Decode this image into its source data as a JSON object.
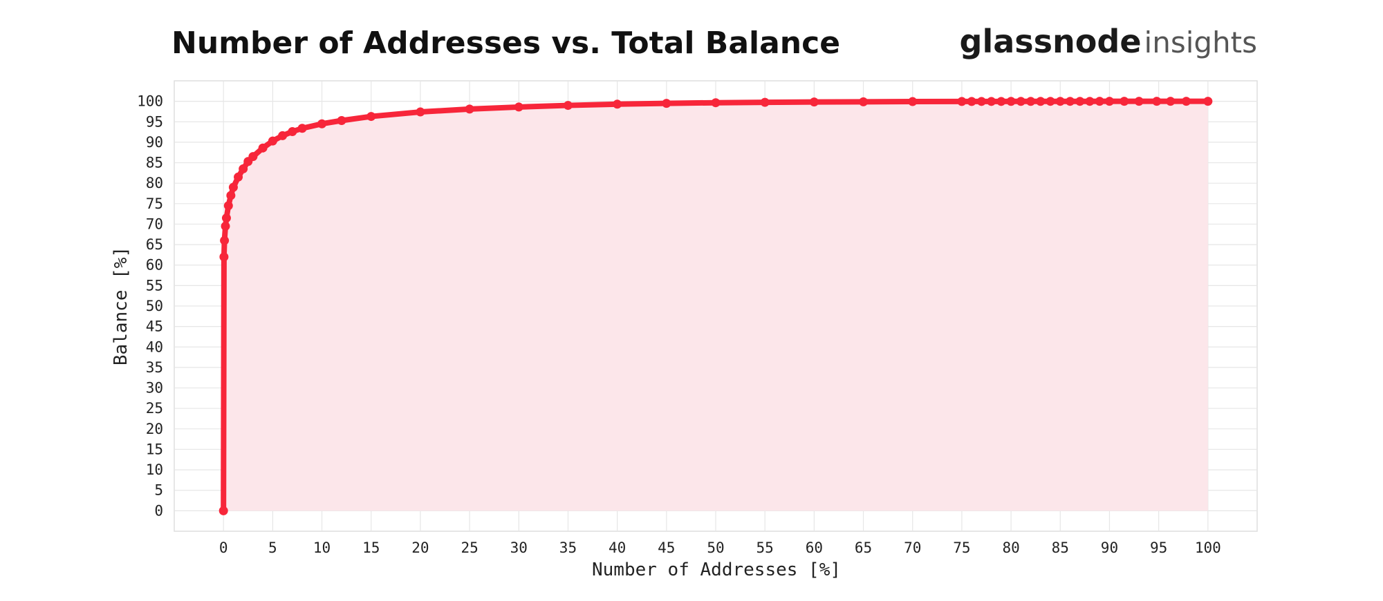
{
  "title": "Number of Addresses vs. Total Balance",
  "brand": {
    "name": "glassnode",
    "product": "insights"
  },
  "colors": {
    "line": "#f7263a",
    "fill": "#fce6ea",
    "grid": "#e6e6e6",
    "frame": "#dedede"
  },
  "chart_data": {
    "type": "area",
    "title": "Number of Addresses vs. Total Balance",
    "xlabel": "Number of Addresses [%]",
    "ylabel": "Balance [%]",
    "xlim": [
      -5,
      105
    ],
    "ylim": [
      -5,
      105
    ],
    "xticks": [
      0,
      5,
      10,
      15,
      20,
      25,
      30,
      35,
      40,
      45,
      50,
      55,
      60,
      65,
      70,
      75,
      80,
      85,
      90,
      95,
      100
    ],
    "yticks": [
      0,
      5,
      10,
      15,
      20,
      25,
      30,
      35,
      40,
      45,
      50,
      55,
      60,
      65,
      70,
      75,
      80,
      85,
      90,
      95,
      100
    ],
    "grid": true,
    "series": [
      {
        "x": [
          0,
          0.05,
          0.1,
          0.2,
          0.3,
          0.5,
          0.75,
          1,
          1.5,
          2,
          2.5,
          3,
          4,
          5,
          6,
          7,
          8,
          10,
          12,
          15,
          20,
          25,
          30,
          35,
          40,
          45,
          50,
          55,
          60,
          65,
          70,
          75,
          76,
          77,
          78,
          79,
          80,
          81,
          82,
          83,
          84,
          85,
          86,
          87,
          88,
          89,
          90,
          91.5,
          93,
          94.8,
          96.2,
          97.8,
          100
        ],
        "y": [
          0,
          62,
          66,
          69.5,
          71.5,
          74.5,
          77,
          79,
          81.5,
          83.5,
          85.3,
          86.5,
          88.6,
          90.3,
          91.6,
          92.6,
          93.4,
          94.5,
          95.3,
          96.3,
          97.4,
          98.1,
          98.6,
          99,
          99.3,
          99.5,
          99.65,
          99.75,
          99.83,
          99.88,
          99.93,
          99.96,
          99.96,
          99.97,
          99.97,
          99.97,
          99.98,
          99.98,
          99.98,
          99.98,
          99.99,
          99.99,
          99.99,
          99.99,
          99.99,
          100,
          100,
          100,
          100,
          100,
          100,
          100,
          100
        ]
      }
    ]
  }
}
